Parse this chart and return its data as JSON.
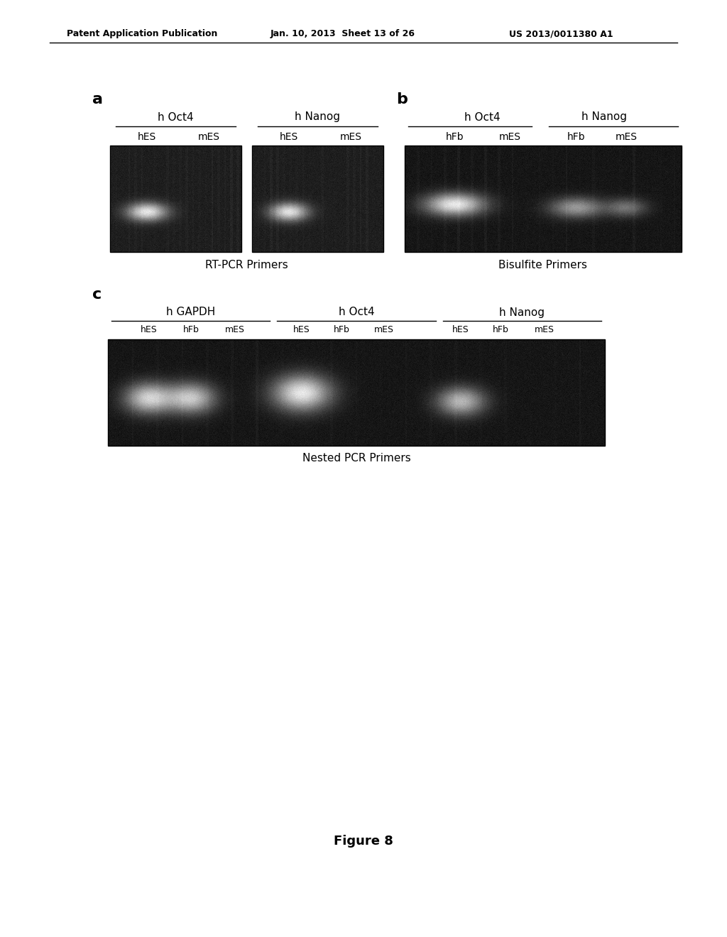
{
  "page_header_left": "Patent Application Publication",
  "page_header_center": "Jan. 10, 2013  Sheet 13 of 26",
  "page_header_right": "US 2013/0011380 A1",
  "figure_label": "Figure 8",
  "panel_a_label": "a",
  "panel_b_label": "b",
  "panel_c_label": "c",
  "panel_a_title1": "h Oct4",
  "panel_a_title2": "h Nanog",
  "panel_a_lanes1": [
    "hES",
    "mES"
  ],
  "panel_a_lanes2": [
    "hES",
    "mES"
  ],
  "panel_a_caption": "RT-PCR Primers",
  "panel_b_title1": "h Oct4",
  "panel_b_title2": "h Nanog",
  "panel_b_lanes1": [
    "hFb",
    "mES"
  ],
  "panel_b_lanes2": [
    "hFb",
    "mES"
  ],
  "panel_b_caption": "Bisulfite Primers",
  "panel_c_title1": "h GAPDH",
  "panel_c_title2": "h Oct4",
  "panel_c_title3": "h Nanog",
  "panel_c_lanes1": [
    "hES",
    "hFb",
    "mES"
  ],
  "panel_c_lanes2": [
    "hES",
    "hFb",
    "mES"
  ],
  "panel_c_lanes3": [
    "hES",
    "hFb",
    "mES"
  ],
  "panel_c_caption": "Nested PCR Primers",
  "bg_color": "#ffffff",
  "gel_bg_dark": "#1a1a1a",
  "gel_bg_med": "#383838"
}
